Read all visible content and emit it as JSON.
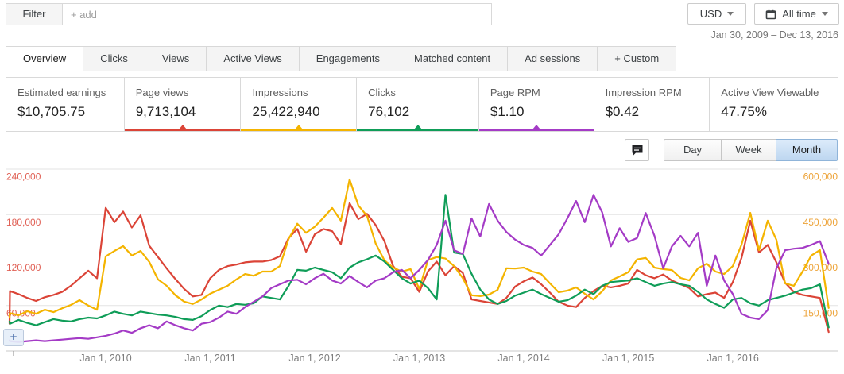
{
  "header": {
    "filter_label": "Filter",
    "add_placeholder": "+ add",
    "currency": "USD",
    "date_range_button": "All time",
    "date_range": "Jan 30, 2009 – Dec 13, 2016"
  },
  "icons": {
    "plus": "+",
    "comment": "comment-bubble",
    "calendar": "calendar"
  },
  "tabs": [
    {
      "label": "Overview",
      "active": true
    },
    {
      "label": "Clicks",
      "active": false
    },
    {
      "label": "Views",
      "active": false
    },
    {
      "label": "Active Views",
      "active": false
    },
    {
      "label": "Engagements",
      "active": false
    },
    {
      "label": "Matched content",
      "active": false
    },
    {
      "label": "Ad sessions",
      "active": false
    },
    {
      "label": "+ Custom",
      "active": false
    }
  ],
  "metrics": [
    {
      "label": "Estimated earnings",
      "value": "$10,705.75",
      "color": null
    },
    {
      "label": "Page views",
      "value": "9,713,104",
      "color": "#db4437"
    },
    {
      "label": "Impressions",
      "value": "25,422,940",
      "color": "#f4b400"
    },
    {
      "label": "Clicks",
      "value": "76,102",
      "color": "#0f9d58"
    },
    {
      "label": "Page RPM",
      "value": "$1.10",
      "color": "#a43bc6"
    },
    {
      "label": "Impression RPM",
      "value": "$0.42",
      "color": null
    },
    {
      "label": "Active View Viewable",
      "value": "47.75%",
      "color": null
    }
  ],
  "chart_controls": {
    "buttons": [
      "Day",
      "Week",
      "Month"
    ],
    "active": "Month"
  },
  "chart_data": {
    "type": "line",
    "x_unit": "month",
    "x_range": [
      "2009-01",
      "2016-12"
    ],
    "x_tick_labels": [
      "Jan 1, 2010",
      "Jan 1, 2011",
      "Jan 1, 2012",
      "Jan 1, 2013",
      "Jan 1, 2014",
      "Jan 1, 2015",
      "Jan 1, 2016"
    ],
    "left_axis": {
      "metric": "Page views",
      "color": "#e06055",
      "max": 240000,
      "ticks": [
        240000,
        180000,
        120000,
        60000
      ],
      "tick_labels": [
        "240,000",
        "180,000",
        "120,000",
        "60,000"
      ]
    },
    "right_axis": {
      "metric": "Impressions",
      "color": "#eda338",
      "max": 600000,
      "ticks": [
        600000,
        450000,
        300000,
        150000
      ],
      "tick_labels": [
        "600,000",
        "450,000",
        "300,000",
        "150,000"
      ]
    },
    "unit_note": "Series values are in thousands, estimated monthly Jan 2009 - Dec 2016 (last point is a partial month, hence the final drop). Clicks and Page RPM are drawn on hidden scales; their values are left-axis-equivalent readings of the plotted line.",
    "grid": true,
    "legend": "none",
    "series": [
      {
        "name": "Page views",
        "color": "#db4437",
        "axis": "left",
        "values": [
          36,
          79,
          75,
          70,
          66,
          71,
          74,
          78,
          86,
          96,
          106,
          96,
          189,
          170,
          184,
          163,
          179,
          139,
          124,
          109,
          95,
          82,
          72,
          74,
          96,
          107,
          112,
          114,
          117,
          118,
          118,
          120,
          125,
          149,
          161,
          131,
          154,
          161,
          158,
          141,
          195,
          174,
          181,
          166,
          145,
          112,
          98,
          96,
          78,
          105,
          118,
          100,
          112,
          103,
          68,
          66,
          64,
          62,
          70,
          85,
          92,
          97,
          88,
          77,
          65,
          60,
          58,
          70,
          79,
          86,
          84,
          86,
          89,
          107,
          100,
          96,
          101,
          93,
          88,
          83,
          72,
          75,
          77,
          70,
          91,
          123,
          172,
          130,
          140,
          117,
          90,
          78,
          74,
          72,
          70,
          25
        ]
      },
      {
        "name": "Impressions",
        "color": "#f4b400",
        "axis": "right",
        "values": [
          110,
          125,
          118,
          131,
          123,
          136,
          128,
          141,
          152,
          168,
          150,
          136,
          312,
          330,
          346,
          315,
          330,
          294,
          236,
          215,
          184,
          163,
          155,
          170,
          189,
          202,
          215,
          236,
          254,
          248,
          262,
          262,
          280,
          370,
          420,
          390,
          410,
          440,
          472,
          430,
          566,
          480,
          446,
          354,
          299,
          275,
          262,
          270,
          205,
          300,
          310,
          305,
          280,
          240,
          184,
          181,
          186,
          202,
          273,
          272,
          275,
          262,
          254,
          223,
          194,
          199,
          210,
          189,
          170,
          197,
          233,
          246,
          260,
          302,
          307,
          275,
          270,
          267,
          241,
          233,
          273,
          288,
          262,
          254,
          280,
          351,
          456,
          333,
          430,
          367,
          223,
          215,
          262,
          315,
          333,
          142
        ]
      },
      {
        "name": "Clicks",
        "color": "#0f9d58",
        "axis": "hidden-left-equivalent",
        "values": [
          39,
          36,
          41,
          37,
          34,
          38,
          42,
          40,
          39,
          42,
          44,
          43,
          47,
          52,
          49,
          47,
          52,
          50,
          48,
          47,
          45,
          42,
          41,
          46,
          54,
          60,
          58,
          62,
          61,
          63,
          72,
          70,
          68,
          86,
          107,
          106,
          110,
          107,
          104,
          96,
          110,
          117,
          121,
          126,
          118,
          107,
          96,
          89,
          93,
          83,
          68,
          206,
          130,
          128,
          102,
          81,
          68,
          62,
          66,
          73,
          77,
          81,
          75,
          70,
          65,
          67,
          73,
          81,
          75,
          86,
          91,
          92,
          93,
          96,
          91,
          86,
          89,
          91,
          88,
          86,
          78,
          68,
          62,
          57,
          68,
          70,
          63,
          60,
          67,
          70,
          73,
          77,
          81,
          83,
          88,
          31
        ]
      },
      {
        "name": "Page RPM",
        "color": "#a43bc6",
        "axis": "hidden-left-equivalent",
        "values": [
          14,
          13,
          12,
          13,
          14,
          13,
          14,
          15,
          16,
          17,
          16,
          18,
          20,
          23,
          27,
          24,
          30,
          34,
          30,
          39,
          34,
          30,
          27,
          36,
          38,
          44,
          52,
          49,
          58,
          65,
          72,
          83,
          88,
          93,
          94,
          88,
          96,
          102,
          93,
          89,
          99,
          91,
          84,
          93,
          96,
          104,
          107,
          96,
          107,
          120,
          140,
          172,
          133,
          128,
          175,
          151,
          194,
          172,
          157,
          147,
          140,
          136,
          126,
          140,
          154,
          175,
          198,
          170,
          206,
          183,
          138,
          162,
          144,
          149,
          182,
          152,
          109,
          138,
          152,
          138,
          156,
          86,
          126,
          93,
          75,
          49,
          44,
          42,
          54,
          109,
          133,
          135,
          136,
          140,
          145,
          115
        ]
      }
    ]
  }
}
